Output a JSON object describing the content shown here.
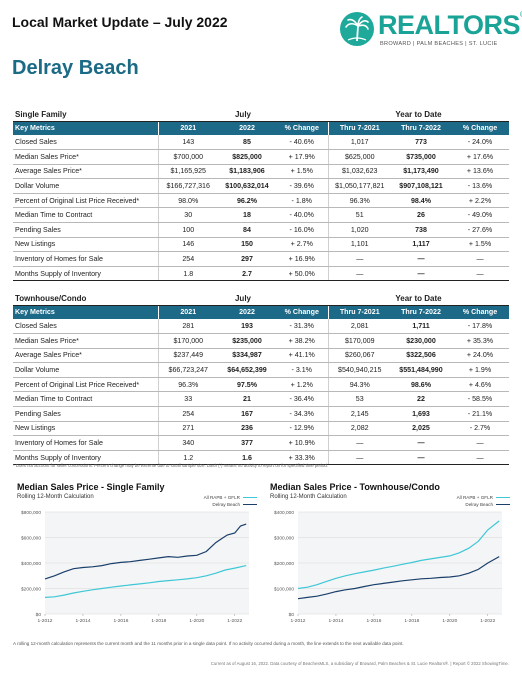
{
  "header": {
    "title": "Local Market Update – July 2022",
    "city": "Delray Beach",
    "logo_word": "REALTORS",
    "logo_mark": "®",
    "logo_sub": "BROWARD | PALM BEACHES | ST. LUCIE"
  },
  "single_family": {
    "section": "Single Family",
    "period1": "July",
    "period2": "Year to Date",
    "columns": [
      "Key Metrics",
      "2021",
      "2022",
      "% Change",
      "Thru 7-2021",
      "Thru 7-2022",
      "% Change"
    ],
    "rows": [
      [
        "Closed Sales",
        "143",
        "85",
        "- 40.6%",
        "1,017",
        "773",
        "- 24.0%"
      ],
      [
        "Median Sales Price*",
        "$700,000",
        "$825,000",
        "+ 17.9%",
        "$625,000",
        "$735,000",
        "+ 17.6%"
      ],
      [
        "Average Sales Price*",
        "$1,165,925",
        "$1,183,906",
        "+ 1.5%",
        "$1,032,623",
        "$1,173,490",
        "+ 13.6%"
      ],
      [
        "Dollar Volume",
        "$166,727,316",
        "$100,632,014",
        "- 39.6%",
        "$1,050,177,821",
        "$907,108,121",
        "- 13.6%"
      ],
      [
        "Percent of Original List Price Received*",
        "98.0%",
        "96.2%",
        "- 1.8%",
        "96.3%",
        "98.4%",
        "+ 2.2%"
      ],
      [
        "Median Time to Contract",
        "30",
        "18",
        "- 40.0%",
        "51",
        "26",
        "- 49.0%"
      ],
      [
        "Pending Sales",
        "100",
        "84",
        "- 16.0%",
        "1,020",
        "738",
        "- 27.6%"
      ],
      [
        "New Listings",
        "146",
        "150",
        "+ 2.7%",
        "1,101",
        "1,117",
        "+ 1.5%"
      ],
      [
        "Inventory of Homes for Sale",
        "254",
        "297",
        "+ 16.9%",
        "—",
        "—",
        "—"
      ],
      [
        "Months Supply of Inventory",
        "1.8",
        "2.7",
        "+ 50.0%",
        "—",
        "—",
        "—"
      ]
    ]
  },
  "townhouse": {
    "section": "Townhouse/Condo",
    "period1": "July",
    "period2": "Year to Date",
    "columns": [
      "Key Metrics",
      "2021",
      "2022",
      "% Change",
      "Thru 7-2021",
      "Thru 7-2022",
      "% Change"
    ],
    "rows": [
      [
        "Closed Sales",
        "281",
        "193",
        "- 31.3%",
        "2,081",
        "1,711",
        "- 17.8%"
      ],
      [
        "Median Sales Price*",
        "$170,000",
        "$235,000",
        "+ 38.2%",
        "$170,009",
        "$230,000",
        "+ 35.3%"
      ],
      [
        "Average Sales Price*",
        "$237,449",
        "$334,987",
        "+ 41.1%",
        "$260,067",
        "$322,506",
        "+ 24.0%"
      ],
      [
        "Dollar Volume",
        "$66,723,247",
        "$64,652,399",
        "- 3.1%",
        "$540,940,215",
        "$551,484,990",
        "+ 1.9%"
      ],
      [
        "Percent of Original List Price Received*",
        "96.3%",
        "97.5%",
        "+ 1.2%",
        "94.3%",
        "98.6%",
        "+ 4.6%"
      ],
      [
        "Median Time to Contract",
        "33",
        "21",
        "- 36.4%",
        "53",
        "22",
        "- 58.5%"
      ],
      [
        "Pending Sales",
        "254",
        "167",
        "- 34.3%",
        "2,145",
        "1,693",
        "- 21.1%"
      ],
      [
        "New Listings",
        "271",
        "236",
        "- 12.9%",
        "2,082",
        "2,025",
        "- 2.7%"
      ],
      [
        "Inventory of Homes for Sale",
        "340",
        "377",
        "+ 10.9%",
        "—",
        "—",
        "—"
      ],
      [
        "Months Supply of Inventory",
        "1.2",
        "1.6",
        "+ 33.3%",
        "—",
        "—",
        "—"
      ]
    ]
  },
  "footnote": "* Does not account for seller concessions. Percent change may be extreme due to small sample size. Dash (-) means no activity to report on for specified time period.",
  "colors": {
    "header_blue": "#1d6a88",
    "series_all": "#3ec7d6",
    "series_city": "#1a3f6b"
  },
  "chart_data": [
    {
      "type": "line",
      "title": "Median Sales Price - Single Family",
      "subtitle": "Rolling 12-Month Calculation",
      "x": [
        "1-2012",
        "1-2014",
        "1-2016",
        "1-2018",
        "1-2020",
        "1-2022"
      ],
      "ylim": [
        0,
        800000
      ],
      "yticks": [
        "$0",
        "$200,000",
        "$400,000",
        "$600,000",
        "$800,000"
      ],
      "ytick_values": [
        0,
        200000,
        400000,
        600000,
        800000
      ],
      "legend": "top-right",
      "series": [
        {
          "name": "All RAPB + GFLR",
          "color": "#3ec7d6",
          "points": [
            [
              2012.0,
              130000
            ],
            [
              2012.5,
              135000
            ],
            [
              2013.0,
              148000
            ],
            [
              2013.5,
              165000
            ],
            [
              2014.0,
              178000
            ],
            [
              2014.5,
              190000
            ],
            [
              2015.0,
              200000
            ],
            [
              2015.5,
              210000
            ],
            [
              2016.0,
              220000
            ],
            [
              2016.5,
              228000
            ],
            [
              2017.0,
              236000
            ],
            [
              2017.5,
              245000
            ],
            [
              2018.0,
              255000
            ],
            [
              2018.5,
              262000
            ],
            [
              2019.0,
              268000
            ],
            [
              2019.5,
              275000
            ],
            [
              2020.0,
              285000
            ],
            [
              2020.5,
              300000
            ],
            [
              2021.0,
              320000
            ],
            [
              2021.5,
              345000
            ],
            [
              2022.0,
              360000
            ],
            [
              2022.6,
              380000
            ]
          ]
        },
        {
          "name": "Delray Beach",
          "color": "#1a3f6b",
          "points": [
            [
              2012.0,
              275000
            ],
            [
              2012.5,
              300000
            ],
            [
              2013.0,
              330000
            ],
            [
              2013.5,
              355000
            ],
            [
              2014.0,
              365000
            ],
            [
              2014.5,
              370000
            ],
            [
              2015.0,
              380000
            ],
            [
              2015.5,
              395000
            ],
            [
              2016.0,
              405000
            ],
            [
              2016.5,
              410000
            ],
            [
              2017.0,
              420000
            ],
            [
              2017.5,
              430000
            ],
            [
              2018.0,
              440000
            ],
            [
              2018.5,
              450000
            ],
            [
              2019.0,
              445000
            ],
            [
              2019.5,
              455000
            ],
            [
              2020.0,
              460000
            ],
            [
              2020.5,
              490000
            ],
            [
              2021.0,
              560000
            ],
            [
              2021.3,
              590000
            ],
            [
              2021.6,
              620000
            ],
            [
              2022.0,
              635000
            ],
            [
              2022.3,
              690000
            ],
            [
              2022.6,
              705000
            ]
          ]
        }
      ]
    },
    {
      "type": "line",
      "title": "Median Sales Price - Townhouse/Condo",
      "subtitle": "Rolling 12-Month Calculation",
      "x": [
        "1-2012",
        "1-2014",
        "1-2016",
        "1-2018",
        "1-2020",
        "1-2022"
      ],
      "ylim": [
        0,
        400000
      ],
      "yticks": [
        "$0",
        "$100,000",
        "$200,000",
        "$300,000",
        "$400,000"
      ],
      "ytick_values": [
        0,
        100000,
        200000,
        300000,
        400000
      ],
      "legend": "top-right",
      "series": [
        {
          "name": "All RAPB + GFLR",
          "color": "#3ec7d6",
          "points": [
            [
              2012.0,
              100000
            ],
            [
              2012.5,
              105000
            ],
            [
              2013.0,
              115000
            ],
            [
              2013.5,
              128000
            ],
            [
              2014.0,
              140000
            ],
            [
              2014.5,
              150000
            ],
            [
              2015.0,
              158000
            ],
            [
              2015.5,
              165000
            ],
            [
              2016.0,
              172000
            ],
            [
              2016.5,
              180000
            ],
            [
              2017.0,
              187000
            ],
            [
              2017.5,
              195000
            ],
            [
              2018.0,
              202000
            ],
            [
              2018.5,
              210000
            ],
            [
              2019.0,
              216000
            ],
            [
              2019.5,
              222000
            ],
            [
              2020.0,
              228000
            ],
            [
              2020.5,
              240000
            ],
            [
              2021.0,
              258000
            ],
            [
              2021.5,
              285000
            ],
            [
              2022.0,
              330000
            ],
            [
              2022.6,
              365000
            ]
          ]
        },
        {
          "name": "Delray Beach",
          "color": "#1a3f6b",
          "points": [
            [
              2012.0,
              60000
            ],
            [
              2012.5,
              65000
            ],
            [
              2013.0,
              70000
            ],
            [
              2013.5,
              78000
            ],
            [
              2014.0,
              88000
            ],
            [
              2014.5,
              95000
            ],
            [
              2015.0,
              100000
            ],
            [
              2015.5,
              108000
            ],
            [
              2016.0,
              115000
            ],
            [
              2016.5,
              120000
            ],
            [
              2017.0,
              125000
            ],
            [
              2017.5,
              130000
            ],
            [
              2018.0,
              134000
            ],
            [
              2018.5,
              138000
            ],
            [
              2019.0,
              140000
            ],
            [
              2019.5,
              143000
            ],
            [
              2020.0,
              145000
            ],
            [
              2020.5,
              150000
            ],
            [
              2021.0,
              160000
            ],
            [
              2021.5,
              175000
            ],
            [
              2022.0,
              200000
            ],
            [
              2022.6,
              225000
            ]
          ]
        }
      ]
    }
  ],
  "bottom_note": "A rolling 12-month calculation represents the current month and the 11 months prior in a single data point. If no activity occurred during a month, the line extends to the next available data point.",
  "credit": "Current as of August 16, 2022. Data courtesy of BeachesMLS, a subsidiary of Broward, Palm Beaches & St. Lucie Realtors®. | Report © 2022 ShowingTime."
}
